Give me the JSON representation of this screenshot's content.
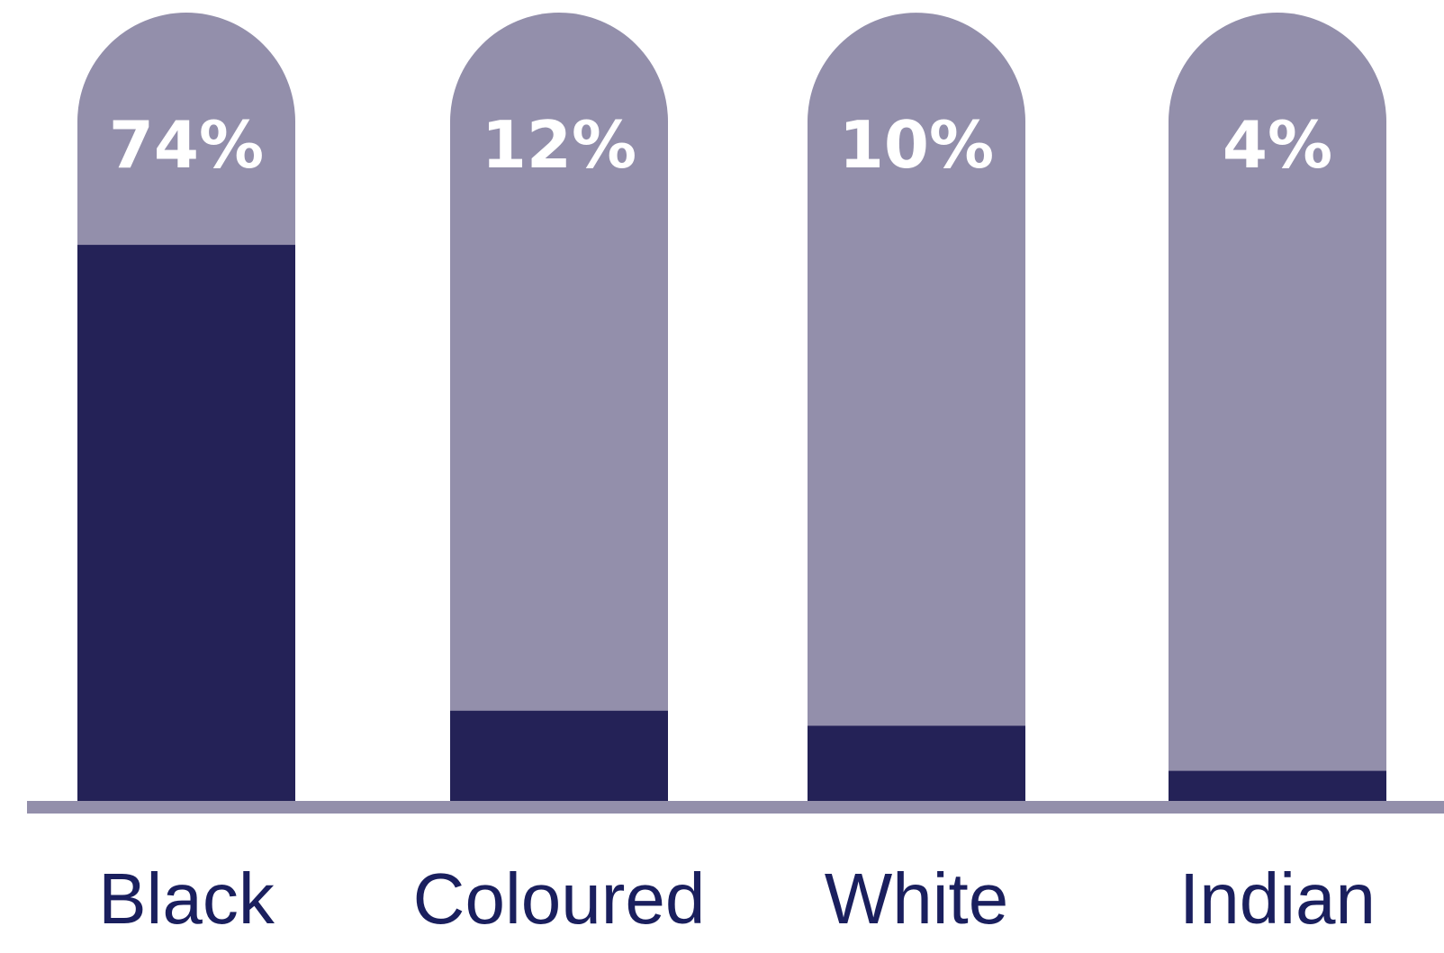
{
  "chart_data": {
    "type": "bar",
    "categories": [
      "Black",
      "Coloured",
      "White",
      "Indian"
    ],
    "values": [
      74,
      12,
      10,
      4
    ],
    "value_labels": [
      "74%",
      "12%",
      "10%",
      "4%"
    ],
    "ylim": [
      0,
      100
    ],
    "grid": false,
    "legend": "none"
  },
  "colors": {
    "fill": "#242257",
    "track": "#938fab",
    "baseline": "#938fab",
    "value_text": "#ffffff",
    "category_text": "#1a1f5e"
  }
}
